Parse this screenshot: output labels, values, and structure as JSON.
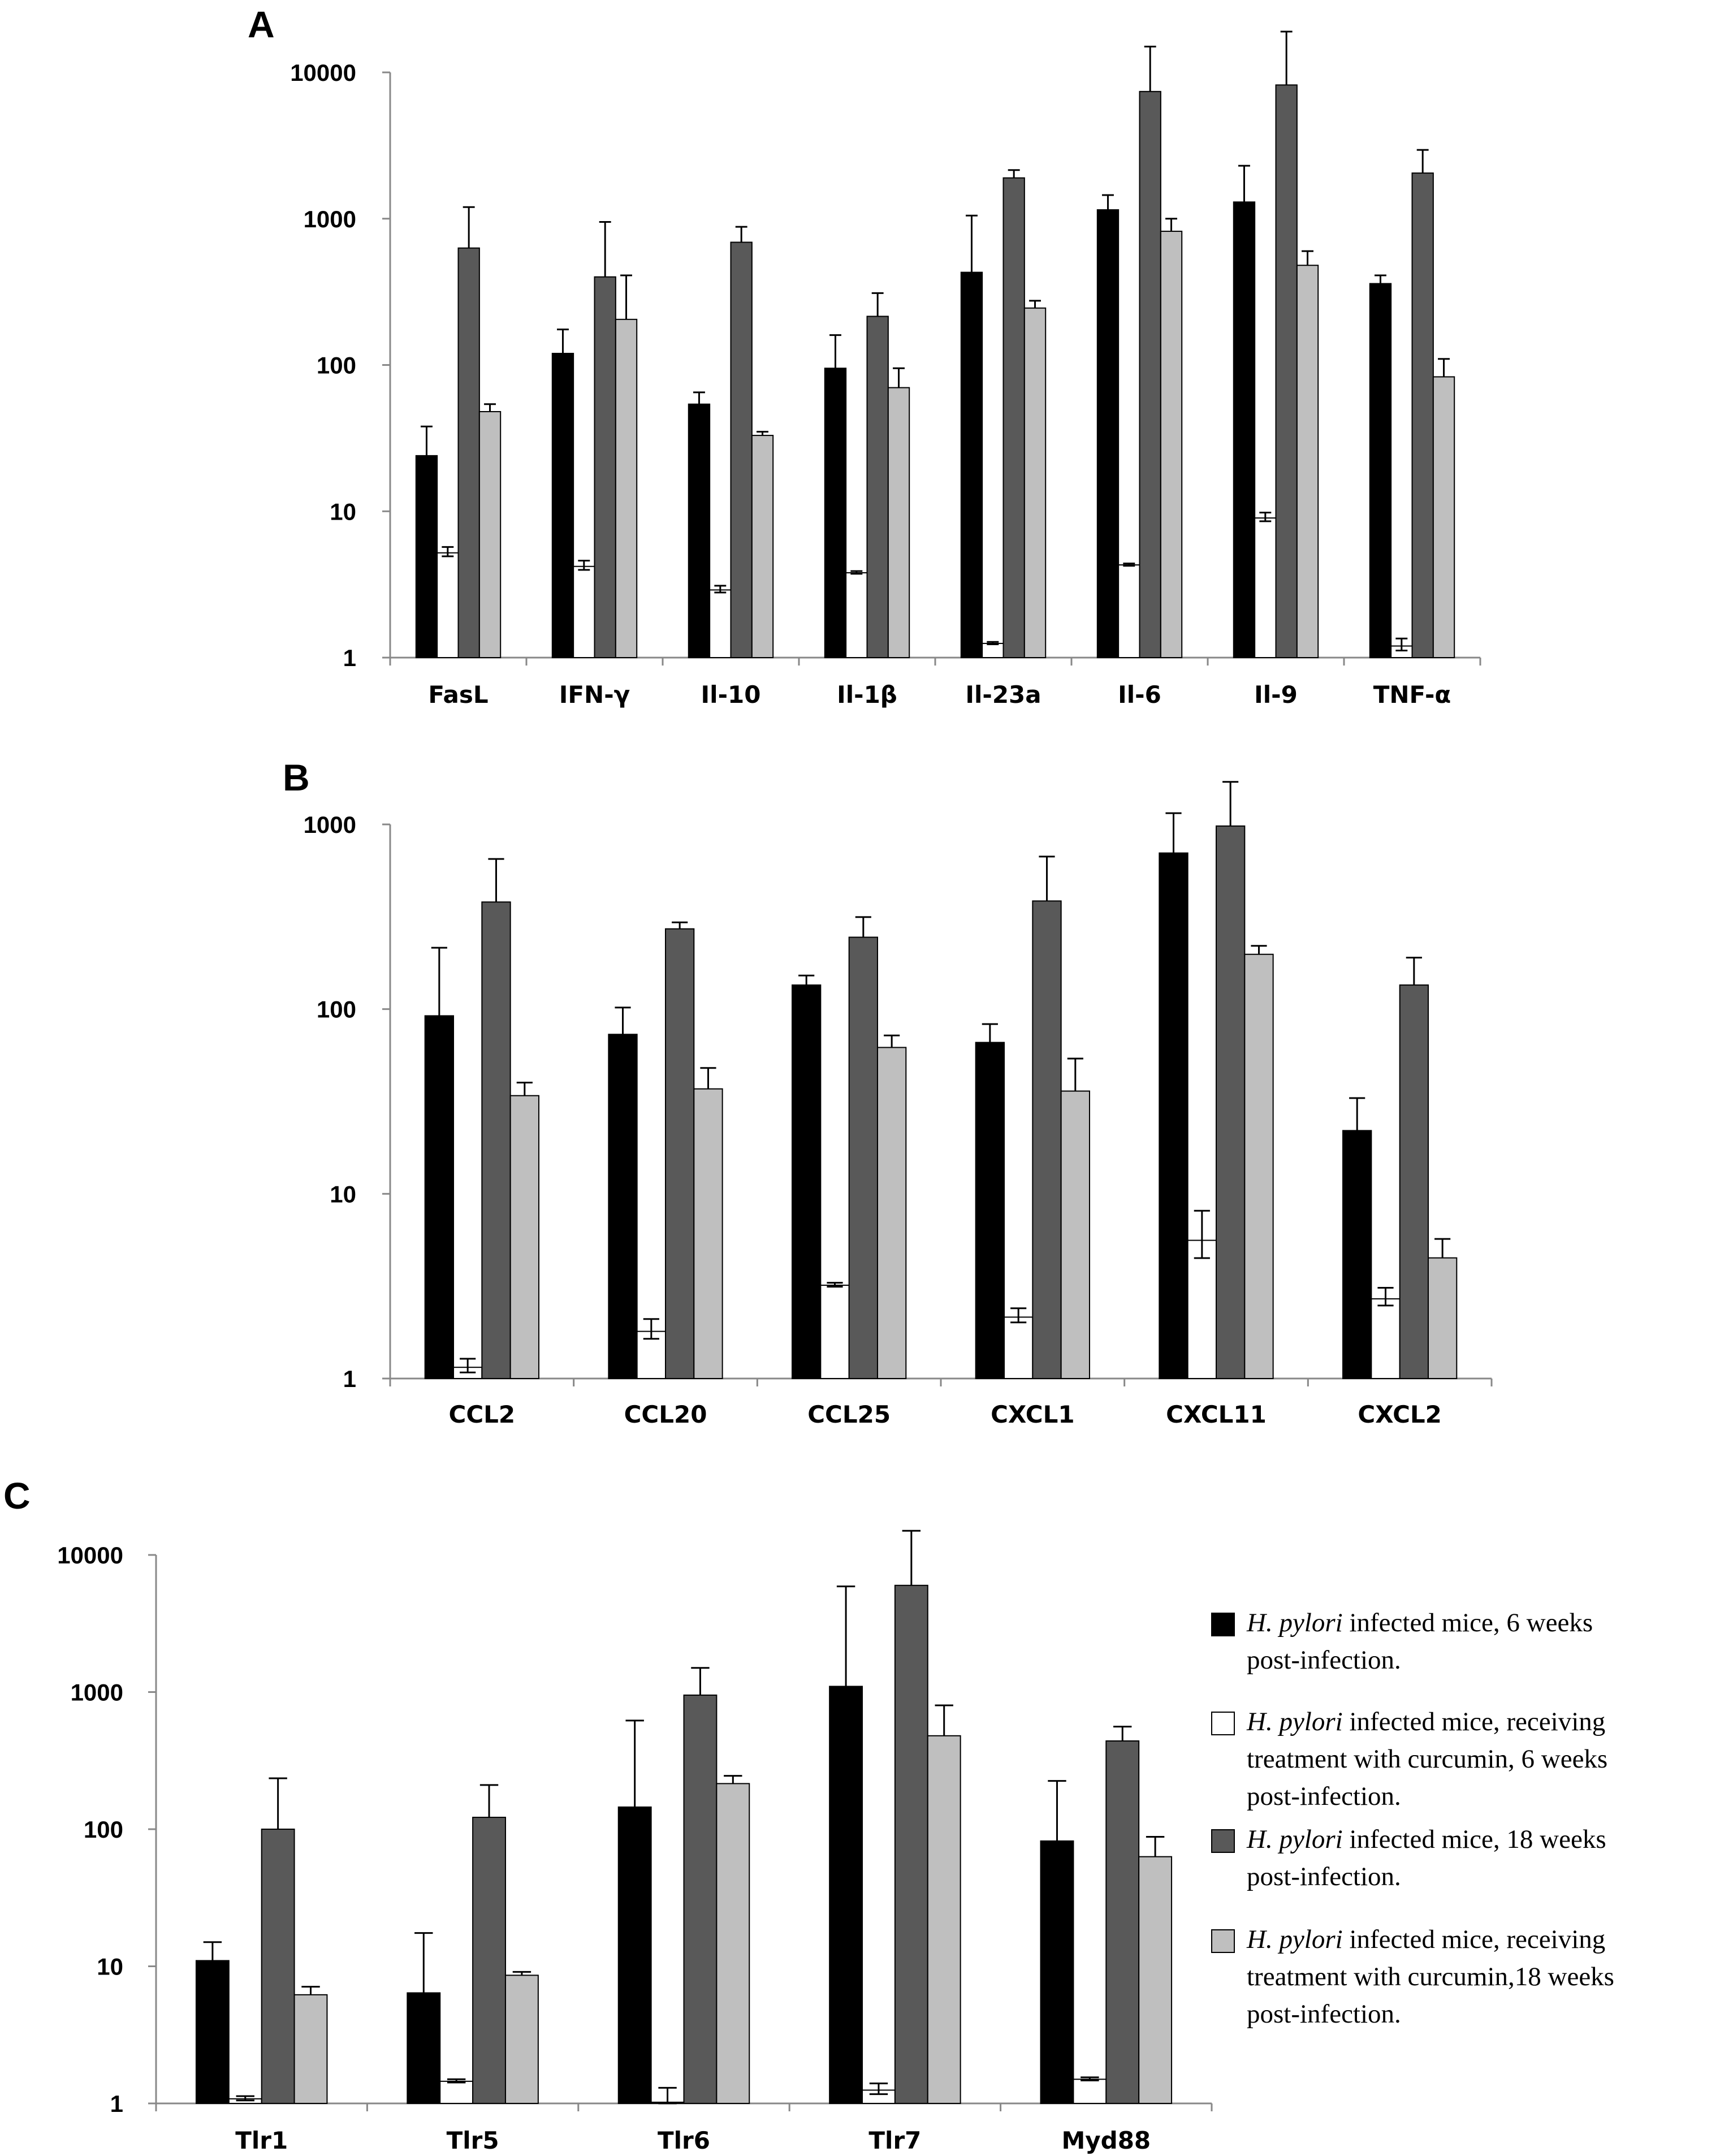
{
  "series_styles": [
    {
      "name": "H. pylori infected mice, 6 weeks post-infection.",
      "color": "#000000"
    },
    {
      "name": "H. pylori infected mice, receiving treatment with curcumin, 6 weeks post-infection.",
      "color": "#ffffff"
    },
    {
      "name": "H. pylori infected mice, 18 weeks post-infection.",
      "color": "#595959"
    },
    {
      "name": "H. pylori infected mice, receiving treatment with curcumin,18 weeks post-infection.",
      "color": "#bfbfbf"
    }
  ],
  "legend": [
    {
      "italic": "H. pylori",
      "line1": " infected mice, 6 weeks",
      "lines": [
        "post-infection."
      ]
    },
    {
      "italic": "H. pylori",
      "line1": " infected mice, receiving",
      "lines": [
        "treatment with curcumin, 6 weeks",
        "post-infection."
      ]
    },
    {
      "italic": "H. pylori",
      "line1": " infected mice, 18 weeks",
      "lines": [
        "post-infection."
      ]
    },
    {
      "italic": "H. pylori",
      "line1": " infected mice, receiving",
      "lines": [
        "treatment with curcumin,18 weeks",
        "post-infection."
      ]
    }
  ],
  "chart_data": [
    {
      "panel": "A",
      "type": "bar",
      "scale": "log",
      "ylim": [
        1,
        10000
      ],
      "yticks": [
        "1",
        "10",
        "100",
        "1000",
        "10000"
      ],
      "categories": [
        "FasL",
        "IFN-γ",
        "Il-10",
        "Il-1β",
        "Il-23a",
        "Il-6",
        "Il-9",
        "TNF-α"
      ],
      "series": [
        {
          "name": "6 weeks",
          "values": [
            24,
            120,
            54,
            95,
            430,
            1150,
            1300,
            360
          ],
          "errors": [
            38,
            175,
            65,
            160,
            1050,
            1450,
            2300,
            410
          ]
        },
        {
          "name": "curcumin 6 weeks",
          "values": [
            5.2,
            4.2,
            2.9,
            3.8,
            1.25,
            4.3,
            9.0,
            1.2
          ],
          "errors": [
            5.7,
            4.6,
            3.1,
            3.9,
            1.28,
            4.4,
            9.8,
            1.35
          ]
        },
        {
          "name": "18 weeks",
          "values": [
            630,
            400,
            690,
            215,
            1900,
            7400,
            8200,
            2050
          ],
          "errors": [
            1200,
            950,
            880,
            310,
            2150,
            15000,
            19000,
            2950
          ]
        },
        {
          "name": "curcumin 18 weeks",
          "values": [
            48,
            205,
            33,
            70,
            245,
            820,
            480,
            83
          ],
          "errors": [
            54,
            410,
            35,
            95,
            275,
            1000,
            600,
            110
          ]
        }
      ]
    },
    {
      "panel": "B",
      "type": "bar",
      "scale": "log",
      "ylim": [
        1,
        1000
      ],
      "yticks": [
        "1",
        "10",
        "100",
        "1000"
      ],
      "categories": [
        "CCL2",
        "CCL20",
        "CCL25",
        "CXCL1",
        "CXCL11",
        "CXCL2"
      ],
      "series": [
        {
          "name": "6 weeks",
          "values": [
            92,
            73,
            135,
            66,
            700,
            22
          ],
          "errors": [
            215,
            102,
            152,
            83,
            1150,
            33
          ]
        },
        {
          "name": "curcumin 6 weeks",
          "values": [
            1.15,
            1.8,
            3.2,
            2.15,
            5.6,
            2.7
          ],
          "errors": [
            1.28,
            2.1,
            3.3,
            2.4,
            8.1,
            3.1
          ]
        },
        {
          "name": "18 weeks",
          "values": [
            380,
            272,
            245,
            385,
            980,
            135
          ],
          "errors": [
            650,
            295,
            315,
            670,
            1700,
            190
          ]
        },
        {
          "name": "curcumin 18 weeks",
          "values": [
            34,
            37,
            62,
            36,
            198,
            4.5
          ],
          "errors": [
            40,
            48,
            72,
            54,
            220,
            5.7
          ]
        }
      ]
    },
    {
      "panel": "C",
      "type": "bar",
      "scale": "log",
      "ylim": [
        1,
        10000
      ],
      "yticks": [
        "1",
        "10",
        "100",
        "1000",
        "10000"
      ],
      "categories": [
        "Tlr1",
        "Tlr5",
        "Tlr6",
        "Tlr7",
        "Myd88"
      ],
      "series": [
        {
          "name": "6 weeks",
          "values": [
            11,
            6.4,
            145,
            1100,
            82
          ],
          "errors": [
            15,
            17.5,
            620,
            5900,
            225
          ]
        },
        {
          "name": "curcumin 6 weeks",
          "values": [
            1.08,
            1.45,
            1.02,
            1.25,
            1.5
          ],
          "errors": [
            1.13,
            1.5,
            1.3,
            1.4,
            1.55
          ]
        },
        {
          "name": "18 weeks",
          "values": [
            100,
            122,
            950,
            6000,
            440
          ],
          "errors": [
            235,
            210,
            1500,
            15000,
            560
          ]
        },
        {
          "name": "curcumin 18 weeks",
          "values": [
            6.2,
            8.6,
            215,
            480,
            63
          ],
          "errors": [
            7.1,
            9.1,
            245,
            800,
            88
          ]
        }
      ]
    }
  ]
}
